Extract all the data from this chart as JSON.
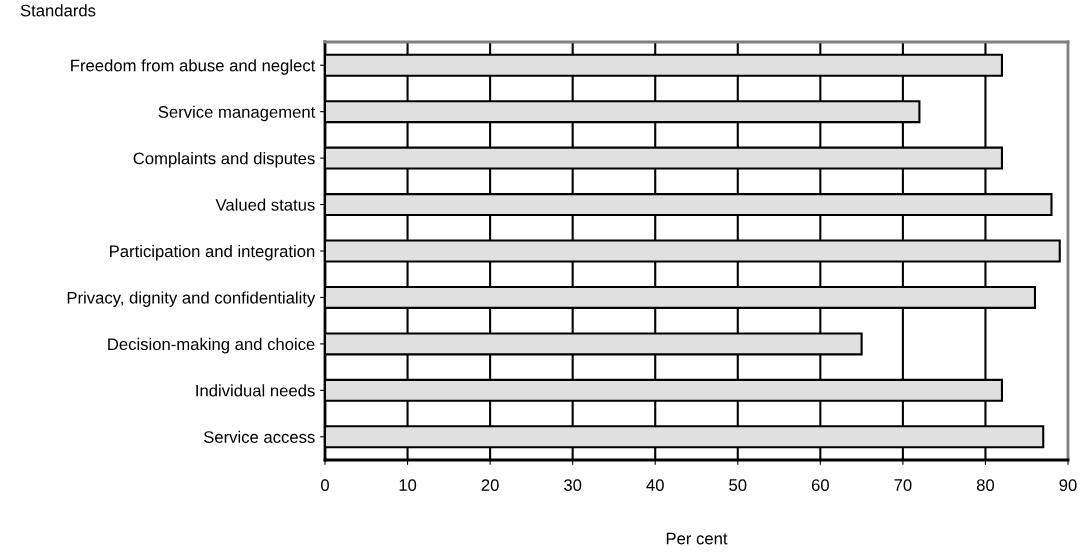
{
  "chart_data": {
    "type": "bar",
    "orientation": "horizontal",
    "ylabel": "Standards",
    "xlabel": "Per cent",
    "categories": [
      "Freedom from abuse and neglect",
      "Service management",
      "Complaints and disputes",
      "Valued status",
      "Participation and integration",
      "Privacy, dignity and confidentiality",
      "Decision-making and choice",
      "Individual needs",
      "Service access"
    ],
    "values": [
      82,
      72,
      82,
      88,
      89,
      86,
      65,
      82,
      87
    ],
    "color": "#e0e0e0",
    "xlim": [
      0,
      90
    ],
    "xticks": [
      0,
      10,
      20,
      30,
      40,
      50,
      60,
      70,
      80,
      90
    ],
    "grid": "x",
    "legend": false
  }
}
